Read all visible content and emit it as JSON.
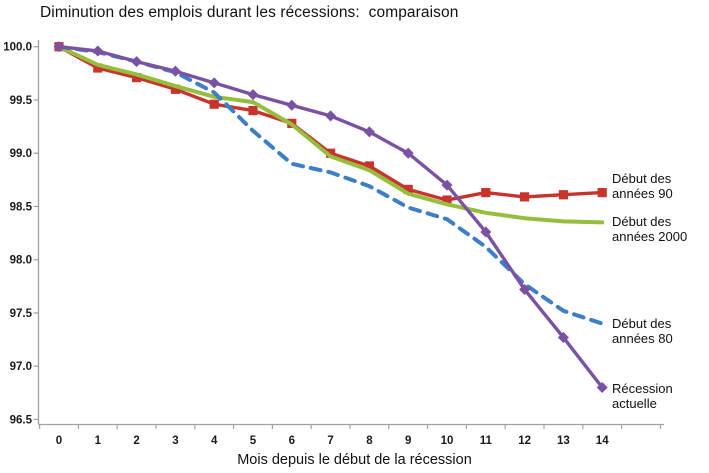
{
  "title": "Diminution des emplois durant les récessions:  comparaison",
  "chart_data": {
    "type": "line",
    "title": "Diminution des emplois durant les récessions:  comparaison",
    "xlabel": "Mois depuis le début de la récession",
    "ylabel": "",
    "x": [
      0,
      1,
      2,
      3,
      4,
      5,
      6,
      7,
      8,
      9,
      10,
      11,
      12,
      13,
      14
    ],
    "x_tick_labels": [
      "0",
      "1",
      "2",
      "3",
      "4",
      "5",
      "6",
      "7",
      "8",
      "9",
      "10",
      "11",
      "12",
      "13",
      "14"
    ],
    "y_ticks": [
      100.0,
      99.5,
      99.0,
      98.5,
      98.0,
      97.5,
      97.0,
      96.5
    ],
    "y_tick_labels": [
      "100.0",
      "99.5",
      "99.0",
      "98.5",
      "98.0",
      "97.5",
      "97.0",
      "96.5"
    ],
    "ylim": [
      96.5,
      100.0
    ],
    "grid": false,
    "legend_position": "right-direct-labels",
    "series": [
      {
        "name": "Début des années 90",
        "label_lines": [
          "Début des",
          "années 90"
        ],
        "color": "#c8342c",
        "marker": "square",
        "dash": null,
        "values": [
          100.0,
          99.8,
          99.71,
          99.6,
          99.46,
          99.4,
          99.28,
          99.0,
          98.88,
          98.66,
          98.56,
          98.63,
          98.59,
          98.61,
          98.63
        ]
      },
      {
        "name": "Début des années 2000",
        "label_lines": [
          "Début des",
          "années 2000"
        ],
        "color": "#94be3c",
        "marker": null,
        "dash": null,
        "values": [
          100.0,
          99.83,
          99.74,
          99.63,
          99.53,
          99.48,
          99.27,
          98.97,
          98.84,
          98.62,
          98.52,
          98.44,
          98.39,
          98.36,
          98.35
        ]
      },
      {
        "name": "Début des années 80",
        "label_lines": [
          "Début des",
          "années 80"
        ],
        "color": "#3d7ec9",
        "marker": null,
        "dash": "10 8",
        "values": [
          100.0,
          99.95,
          99.86,
          99.76,
          99.57,
          99.21,
          98.9,
          98.82,
          98.69,
          98.49,
          98.38,
          98.12,
          97.77,
          97.52,
          97.4
        ]
      },
      {
        "name": "Récession actuelle",
        "label_lines": [
          "Récession",
          "actuelle"
        ],
        "color": "#7a52a3",
        "marker": "diamond",
        "dash": null,
        "values": [
          100.0,
          99.96,
          99.86,
          99.77,
          99.66,
          99.55,
          99.45,
          99.35,
          99.2,
          99.0,
          98.7,
          98.26,
          97.72,
          97.27,
          96.8
        ]
      }
    ],
    "axis_color": "#a0a0a0"
  }
}
